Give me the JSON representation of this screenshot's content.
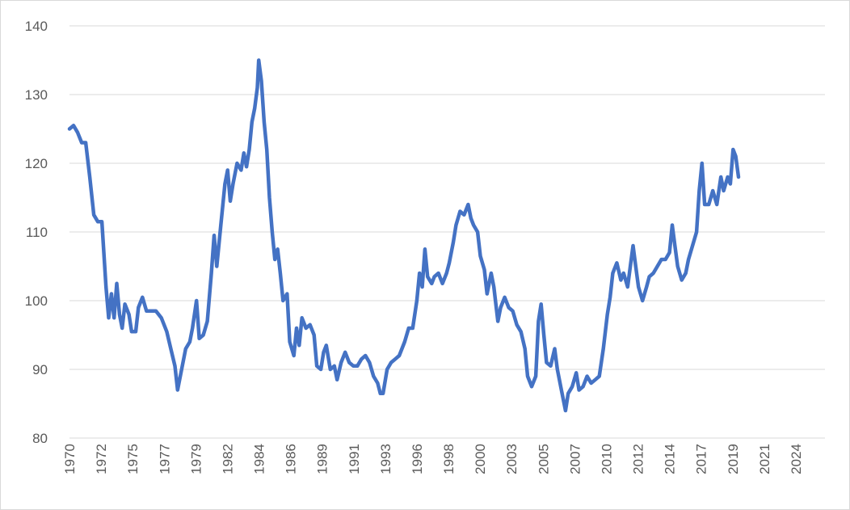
{
  "chart_data": {
    "type": "line",
    "title": "",
    "xlabel": "",
    "ylabel": "",
    "ylim": [
      80,
      140
    ],
    "xlim": [
      1970,
      2025.9
    ],
    "grid": true,
    "legend": "none",
    "y_ticks": [
      80,
      90,
      100,
      110,
      120,
      130,
      140
    ],
    "x_tick_labels": [
      "1970",
      "1972",
      "1975",
      "1977",
      "1979",
      "1982",
      "1984",
      "1986",
      "1989",
      "1991",
      "1993",
      "1996",
      "1998",
      "2000",
      "2003",
      "2005",
      "2007",
      "2010",
      "2012",
      "2014",
      "2017",
      "2019",
      "2021",
      "2024"
    ],
    "series": [
      {
        "color": "#4472c4",
        "points": [
          [
            1970.0,
            125
          ],
          [
            1970.3,
            125.5
          ],
          [
            1970.6,
            124.5
          ],
          [
            1970.9,
            123
          ],
          [
            1971.2,
            123
          ],
          [
            1971.5,
            118
          ],
          [
            1971.8,
            112.5
          ],
          [
            1972.1,
            111.5
          ],
          [
            1972.4,
            111.5
          ],
          [
            1972.7,
            102
          ],
          [
            1972.9,
            97.5
          ],
          [
            1973.1,
            101
          ],
          [
            1973.3,
            97.5
          ],
          [
            1973.5,
            102.5
          ],
          [
            1973.7,
            98
          ],
          [
            1973.9,
            96
          ],
          [
            1974.1,
            99.5
          ],
          [
            1974.4,
            98
          ],
          [
            1974.6,
            95.5
          ],
          [
            1974.9,
            95.5
          ],
          [
            1975.1,
            99
          ],
          [
            1975.4,
            100.5
          ],
          [
            1975.7,
            98.5
          ],
          [
            1976.0,
            98.5
          ],
          [
            1976.4,
            98.5
          ],
          [
            1976.8,
            97.5
          ],
          [
            1977.2,
            95.5
          ],
          [
            1977.5,
            93
          ],
          [
            1977.8,
            90.5
          ],
          [
            1978.0,
            87
          ],
          [
            1978.3,
            90
          ],
          [
            1978.6,
            93
          ],
          [
            1978.9,
            94
          ],
          [
            1979.1,
            96
          ],
          [
            1979.4,
            100
          ],
          [
            1979.6,
            94.5
          ],
          [
            1979.9,
            95
          ],
          [
            1980.2,
            97
          ],
          [
            1980.5,
            104
          ],
          [
            1980.7,
            109.5
          ],
          [
            1980.9,
            105
          ],
          [
            1981.2,
            111
          ],
          [
            1981.5,
            117
          ],
          [
            1981.7,
            119
          ],
          [
            1981.9,
            114.5
          ],
          [
            1982.1,
            117
          ],
          [
            1982.4,
            120
          ],
          [
            1982.7,
            119
          ],
          [
            1982.9,
            121.5
          ],
          [
            1983.1,
            119.5
          ],
          [
            1983.3,
            122
          ],
          [
            1983.5,
            126
          ],
          [
            1983.7,
            128
          ],
          [
            1983.9,
            131
          ],
          [
            1984.0,
            135
          ],
          [
            1984.2,
            132
          ],
          [
            1984.4,
            126
          ],
          [
            1984.6,
            122
          ],
          [
            1984.8,
            115
          ],
          [
            1985.0,
            110
          ],
          [
            1985.2,
            106
          ],
          [
            1985.4,
            107.5
          ],
          [
            1985.6,
            104
          ],
          [
            1985.8,
            100
          ],
          [
            1986.1,
            101
          ],
          [
            1986.3,
            94
          ],
          [
            1986.6,
            92
          ],
          [
            1986.8,
            96
          ],
          [
            1987.0,
            93.5
          ],
          [
            1987.2,
            97.5
          ],
          [
            1987.5,
            96
          ],
          [
            1987.8,
            96.5
          ],
          [
            1988.1,
            95
          ],
          [
            1988.3,
            90.5
          ],
          [
            1988.6,
            90
          ],
          [
            1988.8,
            92.5
          ],
          [
            1989.0,
            93.5
          ],
          [
            1989.3,
            90
          ],
          [
            1989.6,
            90.5
          ],
          [
            1989.8,
            88.5
          ],
          [
            1990.1,
            91
          ],
          [
            1990.4,
            92.5
          ],
          [
            1990.7,
            91
          ],
          [
            1991.0,
            90.5
          ],
          [
            1991.3,
            90.5
          ],
          [
            1991.6,
            91.5
          ],
          [
            1991.9,
            92
          ],
          [
            1992.2,
            91
          ],
          [
            1992.5,
            89
          ],
          [
            1992.8,
            88
          ],
          [
            1993.0,
            86.5
          ],
          [
            1993.2,
            86.5
          ],
          [
            1993.5,
            90
          ],
          [
            1993.8,
            91
          ],
          [
            1994.1,
            91.5
          ],
          [
            1994.4,
            92
          ],
          [
            1994.8,
            94
          ],
          [
            1995.1,
            96
          ],
          [
            1995.4,
            96
          ],
          [
            1995.7,
            100
          ],
          [
            1995.9,
            104
          ],
          [
            1996.1,
            102
          ],
          [
            1996.3,
            107.5
          ],
          [
            1996.5,
            103.5
          ],
          [
            1996.8,
            102.5
          ],
          [
            1997.0,
            103.5
          ],
          [
            1997.3,
            104
          ],
          [
            1997.6,
            102.5
          ],
          [
            1997.9,
            104
          ],
          [
            1998.1,
            105.5
          ],
          [
            1998.4,
            108.5
          ],
          [
            1998.6,
            111
          ],
          [
            1998.9,
            113
          ],
          [
            1999.2,
            112.5
          ],
          [
            1999.5,
            114
          ],
          [
            1999.7,
            112
          ],
          [
            1999.9,
            111
          ],
          [
            2000.2,
            110
          ],
          [
            2000.4,
            106.5
          ],
          [
            2000.7,
            104.5
          ],
          [
            2000.9,
            101
          ],
          [
            2001.2,
            104
          ],
          [
            2001.4,
            102
          ],
          [
            2001.7,
            97
          ],
          [
            2001.9,
            99
          ],
          [
            2002.2,
            100.5
          ],
          [
            2002.5,
            99
          ],
          [
            2002.8,
            98.5
          ],
          [
            2003.1,
            96.5
          ],
          [
            2003.4,
            95.5
          ],
          [
            2003.7,
            93
          ],
          [
            2003.9,
            89
          ],
          [
            2004.2,
            87.5
          ],
          [
            2004.5,
            89
          ],
          [
            2004.7,
            97
          ],
          [
            2004.9,
            99.5
          ],
          [
            2005.1,
            95
          ],
          [
            2005.3,
            91
          ],
          [
            2005.6,
            90.5
          ],
          [
            2005.9,
            93
          ],
          [
            2006.1,
            90
          ],
          [
            2006.4,
            87
          ],
          [
            2006.7,
            84
          ],
          [
            2006.9,
            86.5
          ],
          [
            2007.2,
            87.5
          ],
          [
            2007.5,
            89.5
          ],
          [
            2007.7,
            87
          ],
          [
            2008.0,
            87.5
          ],
          [
            2008.3,
            89
          ],
          [
            2008.6,
            88
          ],
          [
            2008.9,
            88.5
          ],
          [
            2009.2,
            89
          ],
          [
            2009.5,
            93
          ],
          [
            2009.8,
            98
          ],
          [
            2010.0,
            100.5
          ],
          [
            2010.2,
            104
          ],
          [
            2010.5,
            105.5
          ],
          [
            2010.8,
            103
          ],
          [
            2011.0,
            104
          ],
          [
            2011.3,
            102
          ],
          [
            2011.5,
            105
          ],
          [
            2011.7,
            108
          ],
          [
            2011.9,
            105
          ],
          [
            2012.1,
            102
          ],
          [
            2012.4,
            100
          ],
          [
            2012.7,
            102
          ],
          [
            2012.9,
            103.5
          ],
          [
            2013.2,
            104
          ],
          [
            2013.5,
            105
          ],
          [
            2013.8,
            106
          ],
          [
            2014.1,
            106
          ],
          [
            2014.4,
            107
          ],
          [
            2014.6,
            111
          ],
          [
            2014.8,
            108
          ],
          [
            2015.0,
            105
          ],
          [
            2015.3,
            103
          ],
          [
            2015.6,
            104
          ],
          [
            2015.8,
            106
          ],
          [
            2016.1,
            108
          ],
          [
            2016.4,
            110
          ],
          [
            2016.6,
            116
          ],
          [
            2016.8,
            120
          ],
          [
            2017.0,
            114
          ],
          [
            2017.3,
            114
          ],
          [
            2017.6,
            116
          ],
          [
            2017.9,
            114
          ],
          [
            2018.2,
            118
          ],
          [
            2018.4,
            116
          ],
          [
            2018.7,
            118
          ],
          [
            2018.9,
            117
          ],
          [
            2019.1,
            122
          ],
          [
            2019.3,
            121
          ],
          [
            2019.5,
            118
          ]
        ]
      }
    ]
  }
}
